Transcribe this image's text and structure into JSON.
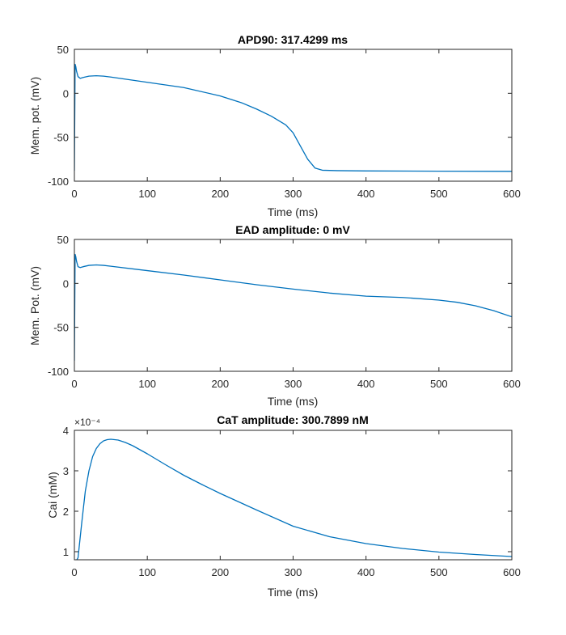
{
  "colors": {
    "line": "#0072BD",
    "axis": "#262626",
    "background": "#ffffff"
  },
  "chart_data": [
    {
      "type": "line",
      "title": "APD90: 317.4299 ms",
      "xlabel": "Time (ms)",
      "ylabel": "Mem. pot. (mV)",
      "xlim": [
        0,
        600
      ],
      "ylim": [
        -100,
        50
      ],
      "xticks": [
        0,
        100,
        200,
        300,
        400,
        500,
        600
      ],
      "yticks": [
        -100,
        -50,
        0,
        50
      ],
      "x_tick_labels": [
        "0",
        "100",
        "200",
        "300",
        "400",
        "500",
        "600"
      ],
      "y_tick_labels": [
        "-100",
        "-50",
        "0",
        "50"
      ],
      "grid": false,
      "series": [
        {
          "x": [
            0,
            1,
            2,
            3,
            5,
            8,
            12,
            20,
            30,
            40,
            50,
            75,
            100,
            150,
            200,
            230,
            250,
            270,
            290,
            300,
            310,
            320,
            330,
            340,
            360,
            400,
            500,
            600
          ],
          "y": [
            -88,
            33,
            30,
            25,
            19,
            17,
            18,
            19.5,
            20,
            19.5,
            18.5,
            15.5,
            12.5,
            6.5,
            -3,
            -11,
            -18,
            -26,
            -36,
            -45,
            -60,
            -75,
            -85,
            -87.5,
            -88,
            -88.3,
            -88.6,
            -88.8
          ]
        }
      ]
    },
    {
      "type": "line",
      "title": "EAD amplitude: 0 mV",
      "xlabel": "Time (ms)",
      "ylabel": "Mem. Pot. (mV)",
      "xlim": [
        0,
        600
      ],
      "ylim": [
        -100,
        50
      ],
      "xticks": [
        0,
        100,
        200,
        300,
        400,
        500,
        600
      ],
      "yticks": [
        -100,
        -50,
        0,
        50
      ],
      "x_tick_labels": [
        "0",
        "100",
        "200",
        "300",
        "400",
        "500",
        "600"
      ],
      "y_tick_labels": [
        "-100",
        "-50",
        "0",
        "50"
      ],
      "grid": false,
      "series": [
        {
          "x": [
            0,
            1,
            2,
            3,
            5,
            8,
            12,
            20,
            30,
            40,
            50,
            100,
            150,
            200,
            250,
            300,
            350,
            400,
            450,
            500,
            525,
            550,
            575,
            600
          ],
          "y": [
            -88,
            33,
            30,
            25,
            19,
            18,
            19,
            20.5,
            21,
            20.5,
            19.5,
            14.5,
            9.5,
            4,
            -1.5,
            -6.5,
            -11,
            -14.5,
            -16,
            -19,
            -21.5,
            -25.5,
            -31,
            -38
          ]
        }
      ]
    },
    {
      "type": "line",
      "title": "CaT amplitude: 300.7899 nM",
      "xlabel": "Time (ms)",
      "ylabel": "Cai (mM)",
      "y_exponent_label": "×10⁻⁴",
      "xlim": [
        0,
        600
      ],
      "ylim": [
        0.8,
        4
      ],
      "xticks": [
        0,
        100,
        200,
        300,
        400,
        500,
        600
      ],
      "yticks": [
        1,
        2,
        3,
        4
      ],
      "x_tick_labels": [
        "0",
        "100",
        "200",
        "300",
        "400",
        "500",
        "600"
      ],
      "y_tick_labels": [
        "1",
        "2",
        "3",
        "4"
      ],
      "grid": false,
      "series": [
        {
          "x": [
            0,
            5,
            10,
            15,
            20,
            25,
            30,
            35,
            40,
            45,
            50,
            60,
            70,
            80,
            100,
            125,
            150,
            175,
            200,
            250,
            300,
            350,
            400,
            450,
            500,
            550,
            600
          ],
          "y": [
            0.7,
            0.85,
            1.7,
            2.5,
            3.0,
            3.35,
            3.55,
            3.67,
            3.74,
            3.77,
            3.78,
            3.76,
            3.7,
            3.62,
            3.42,
            3.15,
            2.89,
            2.66,
            2.44,
            2.03,
            1.63,
            1.37,
            1.2,
            1.08,
            0.99,
            0.93,
            0.88
          ]
        }
      ]
    }
  ]
}
